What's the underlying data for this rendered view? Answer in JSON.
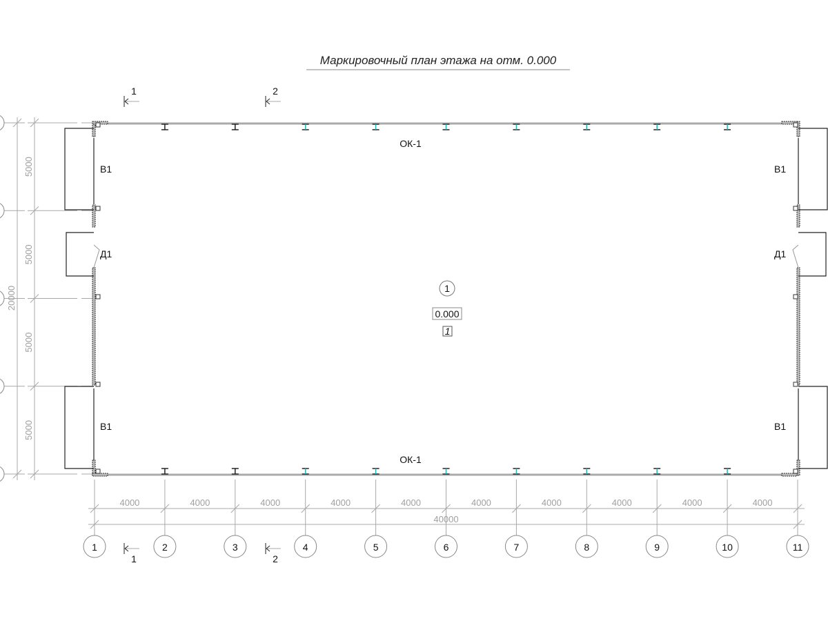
{
  "title": "Маркировочный план этажа на отм. 0.000",
  "axes_horizontal": [
    "1",
    "2",
    "3",
    "4",
    "5",
    "6",
    "7",
    "8",
    "9",
    "10",
    "11"
  ],
  "axes_vertical_count": 5,
  "spans_horizontal": [
    "4000",
    "4000",
    "4000",
    "4000",
    "4000",
    "4000",
    "4000",
    "4000",
    "4000",
    "4000"
  ],
  "total_horizontal": "40000",
  "spans_vertical": [
    "5000",
    "5000",
    "5000",
    "5000"
  ],
  "total_vertical": "20000",
  "section_marks": [
    {
      "label": "1"
    },
    {
      "label": "2"
    }
  ],
  "labels": {
    "window_top": "ОК-1",
    "window_bottom": "ОК-1",
    "gate": "В1",
    "door": "Д1"
  },
  "room": {
    "number": "1",
    "elevation": "0.000",
    "category": "1"
  },
  "colors": {
    "column_accent": "#1fb5b0",
    "wall": "#555555",
    "dimension": "#a8a8a8"
  }
}
